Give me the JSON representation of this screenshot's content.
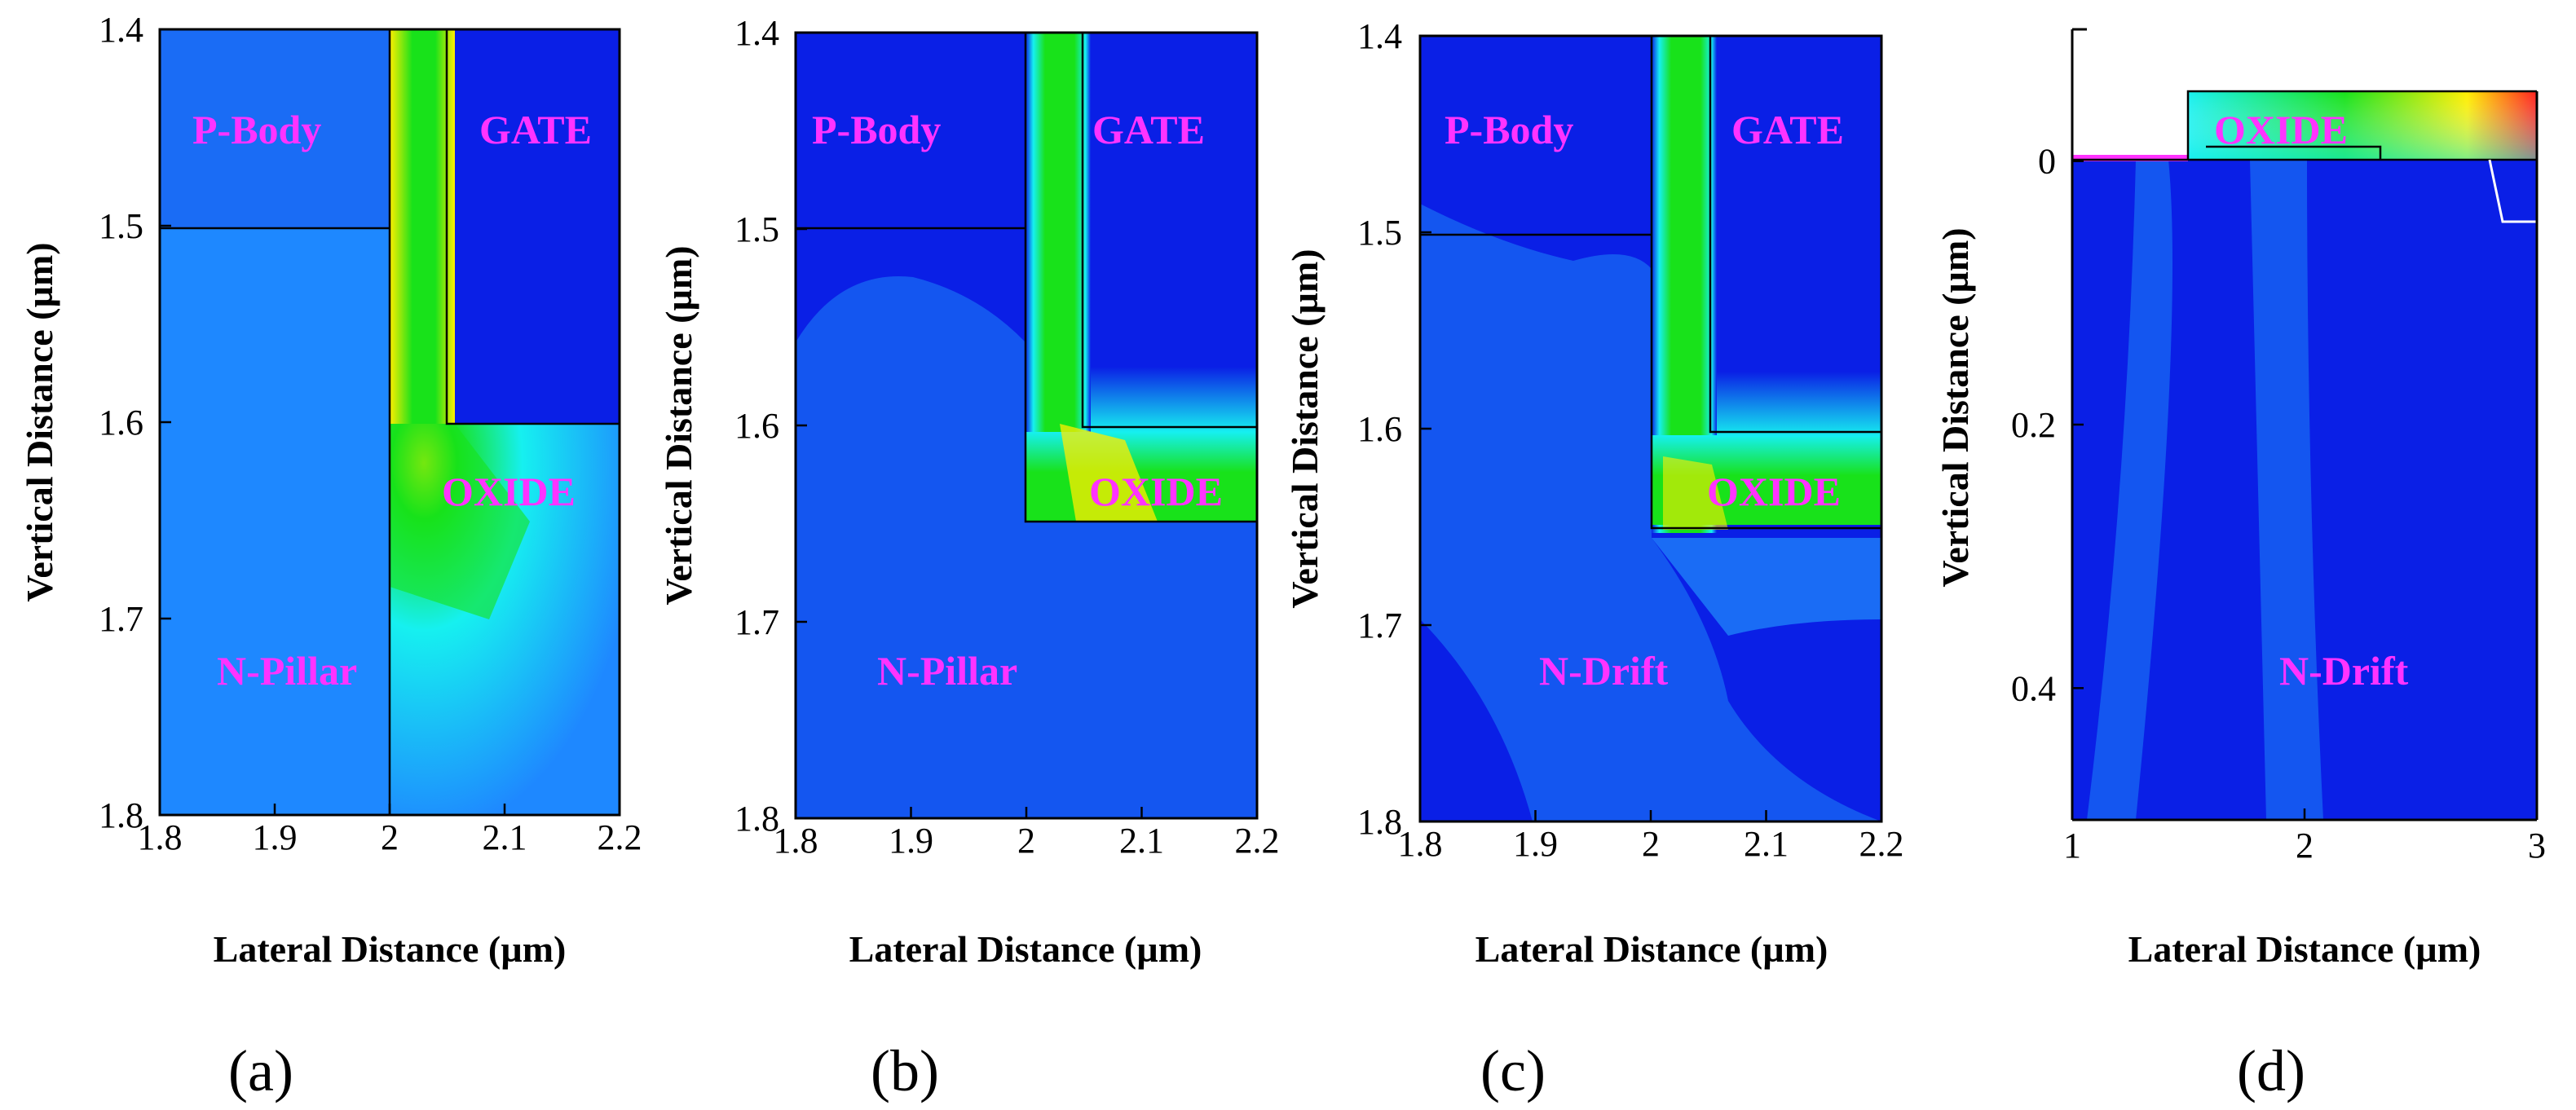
{
  "colors": {
    "region_label": "#ff33ff",
    "field_low": "#0a1fe6",
    "field_mid": "#1e88ff",
    "field_cyan": "#16f0f0",
    "field_green": "#18e21a",
    "field_yellow": "#ffee00",
    "field_red": "#ff2020"
  },
  "chart_data": [
    {
      "panel": "(a)",
      "type": "heatmap",
      "xlabel": "Lateral Distance (µm)",
      "ylabel": "Vertical Distance (µm)",
      "xlim": [
        1.8,
        2.2
      ],
      "ylim": [
        1.4,
        1.8
      ],
      "y_inverted": true,
      "xticks": [
        "1.8",
        "1.9",
        "2",
        "2.1",
        "2.2"
      ],
      "yticks": [
        "1.4",
        "1.5",
        "1.6",
        "1.7",
        "1.8"
      ],
      "regions": [
        "P-Body",
        "GATE",
        "OXIDE",
        "N-Pillar"
      ]
    },
    {
      "panel": "(b)",
      "type": "heatmap",
      "xlabel": "Lateral Distance (µm)",
      "ylabel": "Vertical Distance (µm)",
      "xlim": [
        1.8,
        2.2
      ],
      "ylim": [
        1.4,
        1.8
      ],
      "y_inverted": true,
      "xticks": [
        "1.8",
        "1.9",
        "2",
        "2.1",
        "2.2"
      ],
      "yticks": [
        "1.4",
        "1.5",
        "1.6",
        "1.7",
        "1.8"
      ],
      "regions": [
        "P-Body",
        "GATE",
        "OXIDE",
        "N-Pillar"
      ]
    },
    {
      "panel": "(c)",
      "type": "heatmap",
      "xlabel": "Lateral Distance (µm)",
      "ylabel": "Vertical Distance (µm)",
      "xlim": [
        1.8,
        2.2
      ],
      "ylim": [
        1.4,
        1.8
      ],
      "y_inverted": true,
      "xticks": [
        "1.8",
        "1.9",
        "2",
        "2.1",
        "2.2"
      ],
      "yticks": [
        "1.4",
        "1.5",
        "1.6",
        "1.7",
        "1.8"
      ],
      "regions": [
        "P-Body",
        "GATE",
        "OXIDE",
        "N-Drift"
      ]
    },
    {
      "panel": "(d)",
      "type": "heatmap",
      "xlabel": "Lateral Distance (µm)",
      "ylabel": "Vertical Distance (µm)",
      "xlim": [
        1,
        3
      ],
      "ylim": [
        -0.1,
        0.5
      ],
      "y_inverted": true,
      "xticks": [
        "1",
        "2",
        "3"
      ],
      "yticks": [
        "0",
        "0.2",
        "0.4"
      ],
      "regions": [
        "OXIDE",
        "N-Drift"
      ]
    }
  ]
}
